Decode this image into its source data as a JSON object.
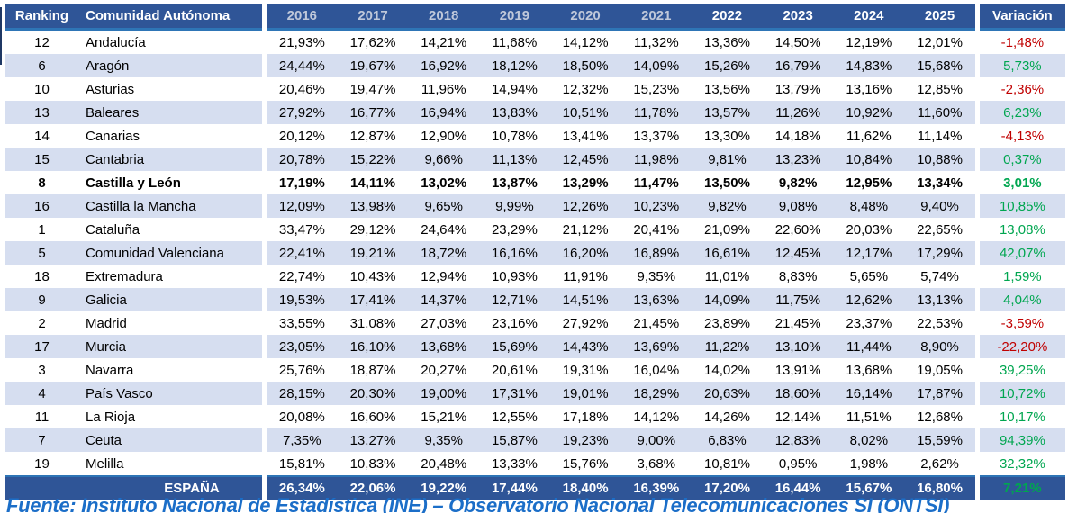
{
  "colors": {
    "header_bg": "#2F5597",
    "stripe": "#D6DEF0",
    "accent_line": "#2E75B6",
    "dim_year_text": "#BFC8DA",
    "positive": "#00A650",
    "negative": "#C00000",
    "footer_text": "#1B6EC8"
  },
  "table": {
    "headers": {
      "ranking": "Ranking",
      "comunidad": "Comunidad Autónoma",
      "years": [
        {
          "label": "2016",
          "dim": true
        },
        {
          "label": "2017",
          "dim": true
        },
        {
          "label": "2018",
          "dim": true
        },
        {
          "label": "2019",
          "dim": true
        },
        {
          "label": "2020",
          "dim": true
        },
        {
          "label": "2021",
          "dim": true
        },
        {
          "label": "2022",
          "dim": false
        },
        {
          "label": "2023",
          "dim": false
        },
        {
          "label": "2024",
          "dim": false
        },
        {
          "label": "2025",
          "dim": false
        }
      ],
      "variacion": "Variación"
    },
    "rows": [
      {
        "ranking": "12",
        "name": "Andalucía",
        "values": [
          "21,93%",
          "17,62%",
          "14,21%",
          "11,68%",
          "14,12%",
          "11,32%",
          "13,36%",
          "14,50%",
          "12,19%",
          "12,01%"
        ],
        "variacion": "-1,48%",
        "trend": "negative",
        "bold": false
      },
      {
        "ranking": "6",
        "name": "Aragón",
        "values": [
          "24,44%",
          "19,67%",
          "16,92%",
          "18,12%",
          "18,50%",
          "14,09%",
          "15,26%",
          "16,79%",
          "14,83%",
          "15,68%"
        ],
        "variacion": "5,73%",
        "trend": "positive",
        "bold": false
      },
      {
        "ranking": "10",
        "name": "Asturias",
        "values": [
          "20,46%",
          "19,47%",
          "11,96%",
          "14,94%",
          "12,32%",
          "15,23%",
          "13,56%",
          "13,79%",
          "13,16%",
          "12,85%"
        ],
        "variacion": "-2,36%",
        "trend": "negative",
        "bold": false
      },
      {
        "ranking": "13",
        "name": "Baleares",
        "values": [
          "27,92%",
          "16,77%",
          "16,94%",
          "13,83%",
          "10,51%",
          "11,78%",
          "13,57%",
          "11,26%",
          "10,92%",
          "11,60%"
        ],
        "variacion": "6,23%",
        "trend": "positive",
        "bold": false
      },
      {
        "ranking": "14",
        "name": "Canarias",
        "values": [
          "20,12%",
          "12,87%",
          "12,90%",
          "10,78%",
          "13,41%",
          "13,37%",
          "13,30%",
          "14,18%",
          "11,62%",
          "11,14%"
        ],
        "variacion": "-4,13%",
        "trend": "negative",
        "bold": false
      },
      {
        "ranking": "15",
        "name": "Cantabria",
        "values": [
          "20,78%",
          "15,22%",
          "9,66%",
          "11,13%",
          "12,45%",
          "11,98%",
          "9,81%",
          "13,23%",
          "10,84%",
          "10,88%"
        ],
        "variacion": "0,37%",
        "trend": "positive",
        "bold": false
      },
      {
        "ranking": "8",
        "name": "Castilla y León",
        "values": [
          "17,19%",
          "14,11%",
          "13,02%",
          "13,87%",
          "13,29%",
          "11,47%",
          "13,50%",
          "9,82%",
          "12,95%",
          "13,34%"
        ],
        "variacion": "3,01%",
        "trend": "positive",
        "bold": true
      },
      {
        "ranking": "16",
        "name": "Castilla la Mancha",
        "values": [
          "12,09%",
          "13,98%",
          "9,65%",
          "9,99%",
          "12,26%",
          "10,23%",
          "9,82%",
          "9,08%",
          "8,48%",
          "9,40%"
        ],
        "variacion": "10,85%",
        "trend": "positive",
        "bold": false
      },
      {
        "ranking": "1",
        "name": "Cataluña",
        "values": [
          "33,47%",
          "29,12%",
          "24,64%",
          "23,29%",
          "21,12%",
          "20,41%",
          "21,09%",
          "22,60%",
          "20,03%",
          "22,65%"
        ],
        "variacion": "13,08%",
        "trend": "positive",
        "bold": false
      },
      {
        "ranking": "5",
        "name": "Comunidad Valenciana",
        "values": [
          "22,41%",
          "19,21%",
          "18,72%",
          "16,16%",
          "16,20%",
          "16,89%",
          "16,61%",
          "12,45%",
          "12,17%",
          "17,29%"
        ],
        "variacion": "42,07%",
        "trend": "positive",
        "bold": false
      },
      {
        "ranking": "18",
        "name": "Extremadura",
        "values": [
          "22,74%",
          "10,43%",
          "12,94%",
          "10,93%",
          "11,91%",
          "9,35%",
          "11,01%",
          "8,83%",
          "5,65%",
          "5,74%"
        ],
        "variacion": "1,59%",
        "trend": "positive",
        "bold": false
      },
      {
        "ranking": "9",
        "name": "Galicia",
        "values": [
          "19,53%",
          "17,41%",
          "14,37%",
          "12,71%",
          "14,51%",
          "13,63%",
          "14,09%",
          "11,75%",
          "12,62%",
          "13,13%"
        ],
        "variacion": "4,04%",
        "trend": "positive",
        "bold": false
      },
      {
        "ranking": "2",
        "name": "Madrid",
        "values": [
          "33,55%",
          "31,08%",
          "27,03%",
          "23,16%",
          "27,92%",
          "21,45%",
          "23,89%",
          "21,45%",
          "23,37%",
          "22,53%"
        ],
        "variacion": "-3,59%",
        "trend": "negative",
        "bold": false
      },
      {
        "ranking": "17",
        "name": "Murcia",
        "values": [
          "23,05%",
          "16,10%",
          "13,68%",
          "15,69%",
          "14,43%",
          "13,69%",
          "11,22%",
          "13,10%",
          "11,44%",
          "8,90%"
        ],
        "variacion": "-22,20%",
        "trend": "negative",
        "bold": false
      },
      {
        "ranking": "3",
        "name": "Navarra",
        "values": [
          "25,76%",
          "18,87%",
          "20,27%",
          "20,61%",
          "19,31%",
          "16,04%",
          "14,02%",
          "13,91%",
          "13,68%",
          "19,05%"
        ],
        "variacion": "39,25%",
        "trend": "positive",
        "bold": false
      },
      {
        "ranking": "4",
        "name": "País Vasco",
        "values": [
          "28,15%",
          "20,30%",
          "19,00%",
          "17,31%",
          "19,01%",
          "18,29%",
          "20,63%",
          "18,60%",
          "16,14%",
          "17,87%"
        ],
        "variacion": "10,72%",
        "trend": "positive",
        "bold": false
      },
      {
        "ranking": "11",
        "name": "La Rioja",
        "values": [
          "20,08%",
          "16,60%",
          "15,21%",
          "12,55%",
          "17,18%",
          "14,12%",
          "14,26%",
          "12,14%",
          "11,51%",
          "12,68%"
        ],
        "variacion": "10,17%",
        "trend": "positive",
        "bold": false
      },
      {
        "ranking": "7",
        "name": "Ceuta",
        "values": [
          "7,35%",
          "13,27%",
          "9,35%",
          "15,87%",
          "19,23%",
          "9,00%",
          "6,83%",
          "12,83%",
          "8,02%",
          "15,59%"
        ],
        "variacion": "94,39%",
        "trend": "positive",
        "bold": false
      },
      {
        "ranking": "19",
        "name": "Melilla",
        "values": [
          "15,81%",
          "10,83%",
          "20,48%",
          "13,33%",
          "15,76%",
          "3,68%",
          "10,81%",
          "0,95%",
          "1,98%",
          "2,62%"
        ],
        "variacion": "32,32%",
        "trend": "positive",
        "bold": false
      }
    ],
    "total": {
      "label": "ESPAÑA",
      "values": [
        "26,34%",
        "22,06%",
        "19,22%",
        "17,44%",
        "18,40%",
        "16,39%",
        "17,20%",
        "16,44%",
        "15,67%",
        "16,80%"
      ],
      "variacion": "7,21%",
      "trend": "positive"
    }
  },
  "footer": {
    "source": "Fuente: Instituto Nacional de Estadística (INE) – Observatorio Nacional Telecomunicaciones SI (ONTSI)"
  }
}
